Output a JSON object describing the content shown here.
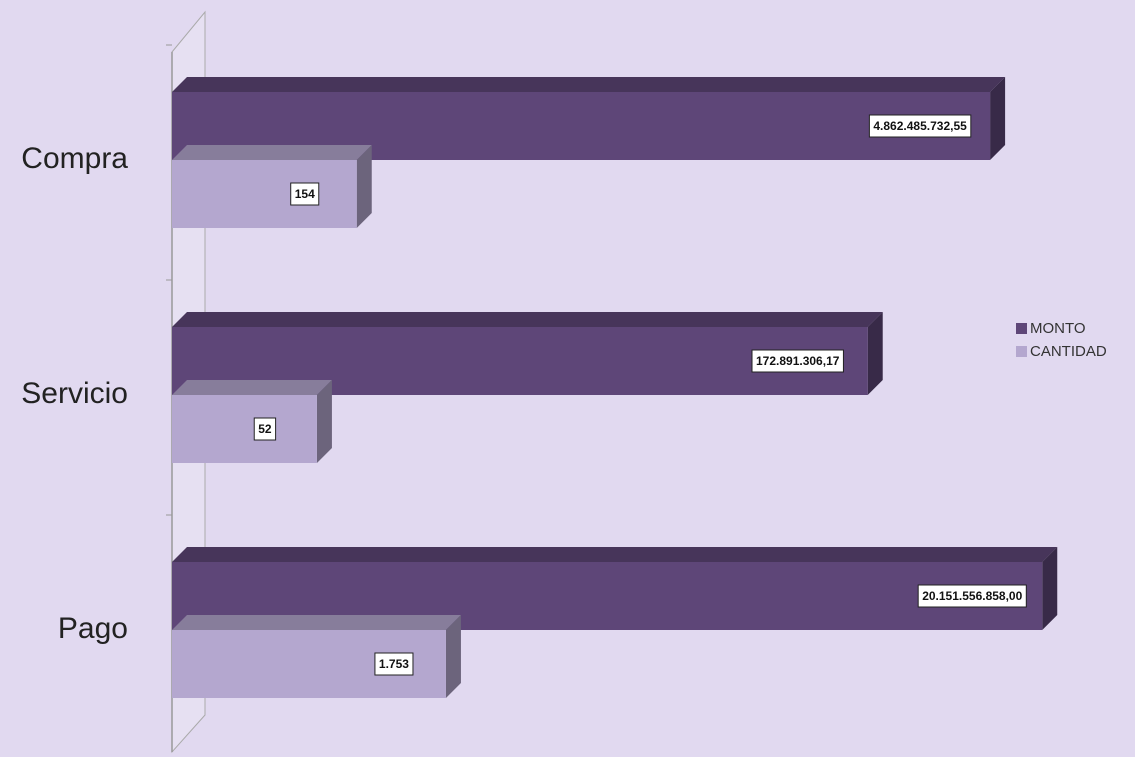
{
  "chart_data": {
    "type": "bar",
    "orientation": "horizontal",
    "x_scale": "log",
    "categories": [
      "Compra",
      "Servicio",
      "Pago"
    ],
    "series": [
      {
        "name": "MONTO",
        "color": "#5e4678",
        "values": [
          4862485732.55,
          172891306.17,
          20151556858
        ],
        "value_labels": [
          "4.862.485.732,55",
          "172.891.306,17",
          "20.151.556.858,00"
        ]
      },
      {
        "name": "CANTIDAD",
        "color": "#b4a7cf",
        "values": [
          154,
          52,
          1753
        ],
        "value_labels": [
          "154",
          "52",
          "1.753"
        ]
      }
    ],
    "xlim": [
      1,
      100000000000
    ],
    "grid": false,
    "legend": "right"
  }
}
